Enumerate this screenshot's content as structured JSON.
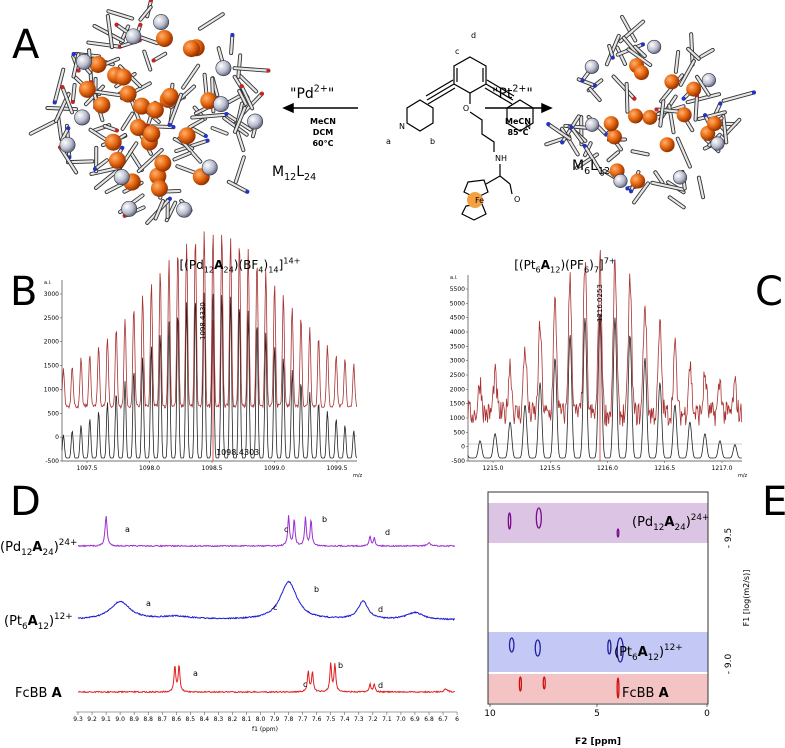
{
  "panel_labels": [
    "A",
    "B",
    "C",
    "D",
    "E"
  ],
  "panel_a": {
    "reagent_left": [
      "\"Pd",
      "2+",
      "\""
    ],
    "conditions_left": [
      "MeCN",
      "DCM",
      "60°C"
    ],
    "reagent_right": [
      "\"Pt",
      "2+",
      "\""
    ],
    "conditions_right": [
      "MeCN",
      "85°C"
    ],
    "product_left": [
      "M",
      "12",
      "L",
      "24"
    ],
    "product_right": [
      "M",
      "6",
      "L",
      "12"
    ],
    "ligand_labels": [
      "a",
      "b",
      "c",
      "d"
    ],
    "atoms": [
      "N",
      "N",
      "O",
      "NH",
      "O",
      "Fe"
    ]
  },
  "panel_b": {
    "title": [
      "[(Pd",
      "12",
      "A",
      "24",
      ")(BF",
      "4",
      ")",
      "14",
      "]",
      "14+"
    ],
    "y_unit": "a.i.",
    "yticks": [
      "3000",
      "2500",
      "2000",
      "1500",
      "1000",
      "500",
      "0",
      "-500"
    ],
    "xticks": [
      "1097.5",
      "1098.0",
      "1098.5",
      "1099.0",
      "1099.5"
    ],
    "x_unit": "m/z",
    "peak_labels": [
      "1098.4330",
      "1098.4303"
    ]
  },
  "panel_c": {
    "title": [
      "[(Pt",
      "6",
      "A",
      "12",
      ")(PF",
      "6",
      ")",
      "7",
      "]",
      "7+"
    ],
    "y_unit": "a.i.",
    "yticks": [
      "5500",
      "5000",
      "4500",
      "4000",
      "3500",
      "3000",
      "2500",
      "2000",
      "1500",
      "1000",
      "500",
      "0",
      "-500"
    ],
    "xticks": [
      "1215.0",
      "1215.5",
      "1216.0",
      "1216.5",
      "1217.0"
    ],
    "x_unit": "m/z",
    "peak_label": "1216.0253"
  },
  "panel_d": {
    "spectrum_labels": [
      [
        "(Pd",
        "12",
        "A",
        "24",
        ")",
        "24+"
      ],
      [
        "(Pt",
        "6",
        "A",
        "12",
        ")",
        "12+"
      ],
      [
        "FcBB ",
        "A"
      ]
    ],
    "peak_letters": [
      [
        "a",
        "c",
        "b",
        "d"
      ],
      [
        "a",
        "c",
        "b",
        "d"
      ],
      [
        "a",
        "c",
        "b",
        "d"
      ]
    ],
    "xticks": [
      "9.3",
      "9.2",
      "9.1",
      "9.0",
      "8.9",
      "8.8",
      "8.7",
      "8.6",
      "8.5",
      "8.4",
      "8.3",
      "8.2",
      "8.1",
      "8.0",
      "7.9",
      "7.8",
      "7.7",
      "7.6",
      "7.5",
      "7.4",
      "7.3",
      "7.2",
      "7.1",
      "7.0",
      "6.9",
      "6.8",
      "6.7",
      "6"
    ],
    "x_label": "f1 (ppm)"
  },
  "panel_e": {
    "band_labels": [
      [
        "(Pd",
        "12",
        "A",
        "24",
        ")",
        "24+"
      ],
      [
        "(Pt",
        "6",
        "A",
        "12",
        ")",
        "12+"
      ],
      [
        "FcBB ",
        "A"
      ]
    ],
    "yticks": [
      "- 9.5",
      "- 9.0"
    ],
    "y_label": "F1 [log(m2/s)]",
    "xticks": [
      "10",
      "5",
      "0"
    ],
    "x_label": "F2 [ppm]"
  }
}
